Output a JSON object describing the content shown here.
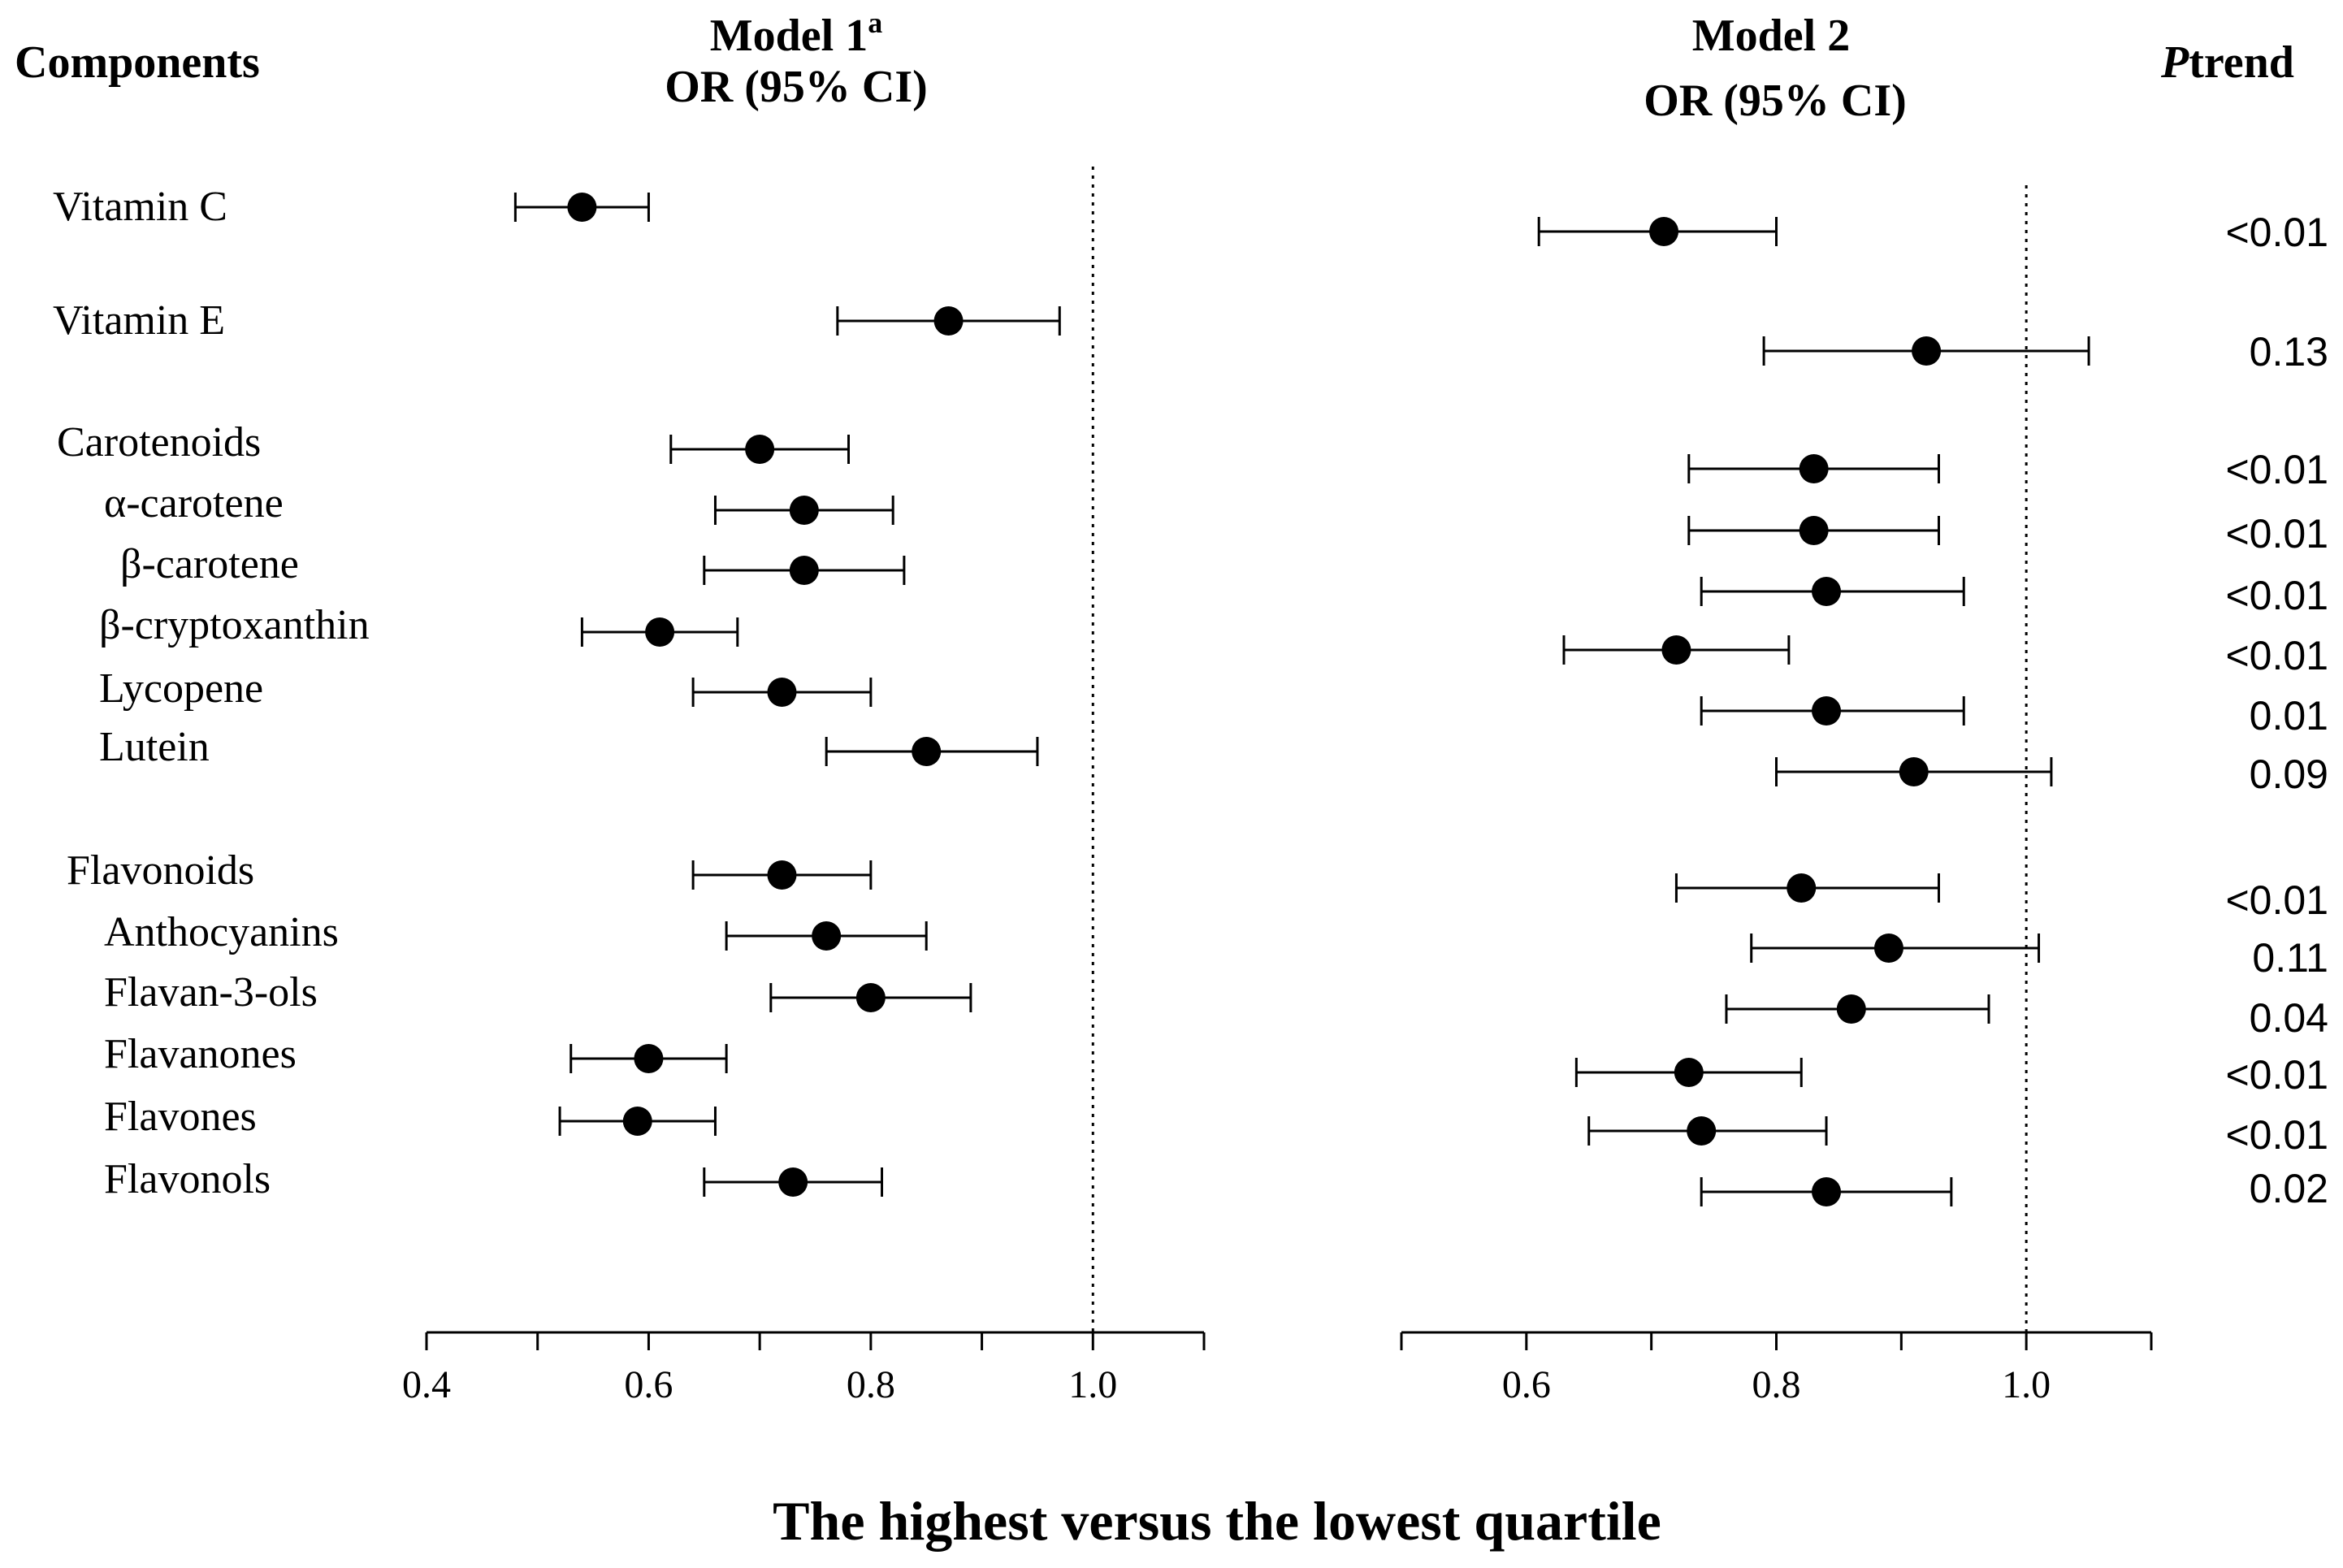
{
  "chart_data": {
    "type": "forest",
    "headers": {
      "components": "Components",
      "model1_title": "Model 1",
      "model1_superscript": "a",
      "model1_subtitle": "OR (95% CI)",
      "model2_title": "Model 2",
      "model2_subtitle": "OR (95% CI)",
      "ptrend_main": "P",
      "ptrend_sub": "trend"
    },
    "xlabel": "The highest versus the lowest quartile",
    "reference_line": 1.0,
    "panels": [
      {
        "name": "Model 1",
        "xlim": [
          0.4,
          1.1
        ],
        "ticks": [
          0.4,
          0.5,
          0.6,
          0.7,
          0.8,
          0.9,
          1.0,
          1.1
        ],
        "tick_labels": [
          "0.4",
          "0.6",
          "0.8",
          "1.0"
        ]
      },
      {
        "name": "Model 2",
        "xlim": [
          0.5,
          1.1
        ],
        "ticks": [
          0.5,
          0.6,
          0.7,
          0.8,
          0.9,
          1.0,
          1.1
        ],
        "tick_labels": [
          "0.6",
          "0.8",
          "1.0"
        ]
      }
    ],
    "rows": [
      {
        "label": "Vitamin C",
        "level": 0,
        "m1": [
          0.54,
          0.48,
          0.6
        ],
        "m2": [
          0.71,
          0.61,
          0.8
        ],
        "p_trend": "<0.01"
      },
      {
        "label": "Vitamin E",
        "level": 0,
        "m1": [
          0.87,
          0.77,
          0.97
        ],
        "m2": [
          0.92,
          0.79,
          1.05
        ],
        "p_trend": "0.13"
      },
      {
        "label": "Carotenoids",
        "level": 0,
        "m1": [
          0.7,
          0.62,
          0.78
        ],
        "m2": [
          0.83,
          0.73,
          0.93
        ],
        "p_trend": "<0.01"
      },
      {
        "label": "α-carotene",
        "level": 1,
        "m1": [
          0.74,
          0.66,
          0.82
        ],
        "m2": [
          0.83,
          0.73,
          0.93
        ],
        "p_trend": "<0.01"
      },
      {
        "label": "β-carotene",
        "level": 2,
        "m1": [
          0.74,
          0.65,
          0.83
        ],
        "m2": [
          0.84,
          0.74,
          0.95
        ],
        "p_trend": "<0.01"
      },
      {
        "label": "β-cryptoxanthin",
        "level": 1,
        "m1": [
          0.61,
          0.54,
          0.68
        ],
        "m2": [
          0.72,
          0.63,
          0.81
        ],
        "p_trend": "<0.01"
      },
      {
        "label": "Lycopene",
        "level": 1,
        "m1": [
          0.72,
          0.64,
          0.8
        ],
        "m2": [
          0.84,
          0.74,
          0.95
        ],
        "p_trend": "0.01"
      },
      {
        "label": "Lutein",
        "level": 1,
        "m1": [
          0.85,
          0.76,
          0.95
        ],
        "m2": [
          0.91,
          0.8,
          1.02
        ],
        "p_trend": "0.09"
      },
      {
        "label": "Flavonoids",
        "level": 0,
        "m1": [
          0.72,
          0.64,
          0.8
        ],
        "m2": [
          0.82,
          0.72,
          0.93
        ],
        "p_trend": "<0.01"
      },
      {
        "label": "Anthocyanins",
        "level": 1,
        "m1": [
          0.76,
          0.67,
          0.85
        ],
        "m2": [
          0.89,
          0.78,
          1.01
        ],
        "p_trend": "0.11"
      },
      {
        "label": "Flavan-3-ols",
        "level": 1,
        "m1": [
          0.8,
          0.71,
          0.89
        ],
        "m2": [
          0.86,
          0.76,
          0.97
        ],
        "p_trend": "0.04"
      },
      {
        "label": "Flavanones",
        "level": 1,
        "m1": [
          0.6,
          0.53,
          0.67
        ],
        "m2": [
          0.73,
          0.64,
          0.82
        ],
        "p_trend": "<0.01"
      },
      {
        "label": "Flavones",
        "level": 1,
        "m1": [
          0.59,
          0.52,
          0.66
        ],
        "m2": [
          0.74,
          0.65,
          0.84
        ],
        "p_trend": "<0.01"
      },
      {
        "label": "Flavonols",
        "level": 1,
        "m1": [
          0.73,
          0.65,
          0.81
        ],
        "m2": [
          0.84,
          0.74,
          0.94
        ],
        "p_trend": "0.02"
      }
    ]
  }
}
